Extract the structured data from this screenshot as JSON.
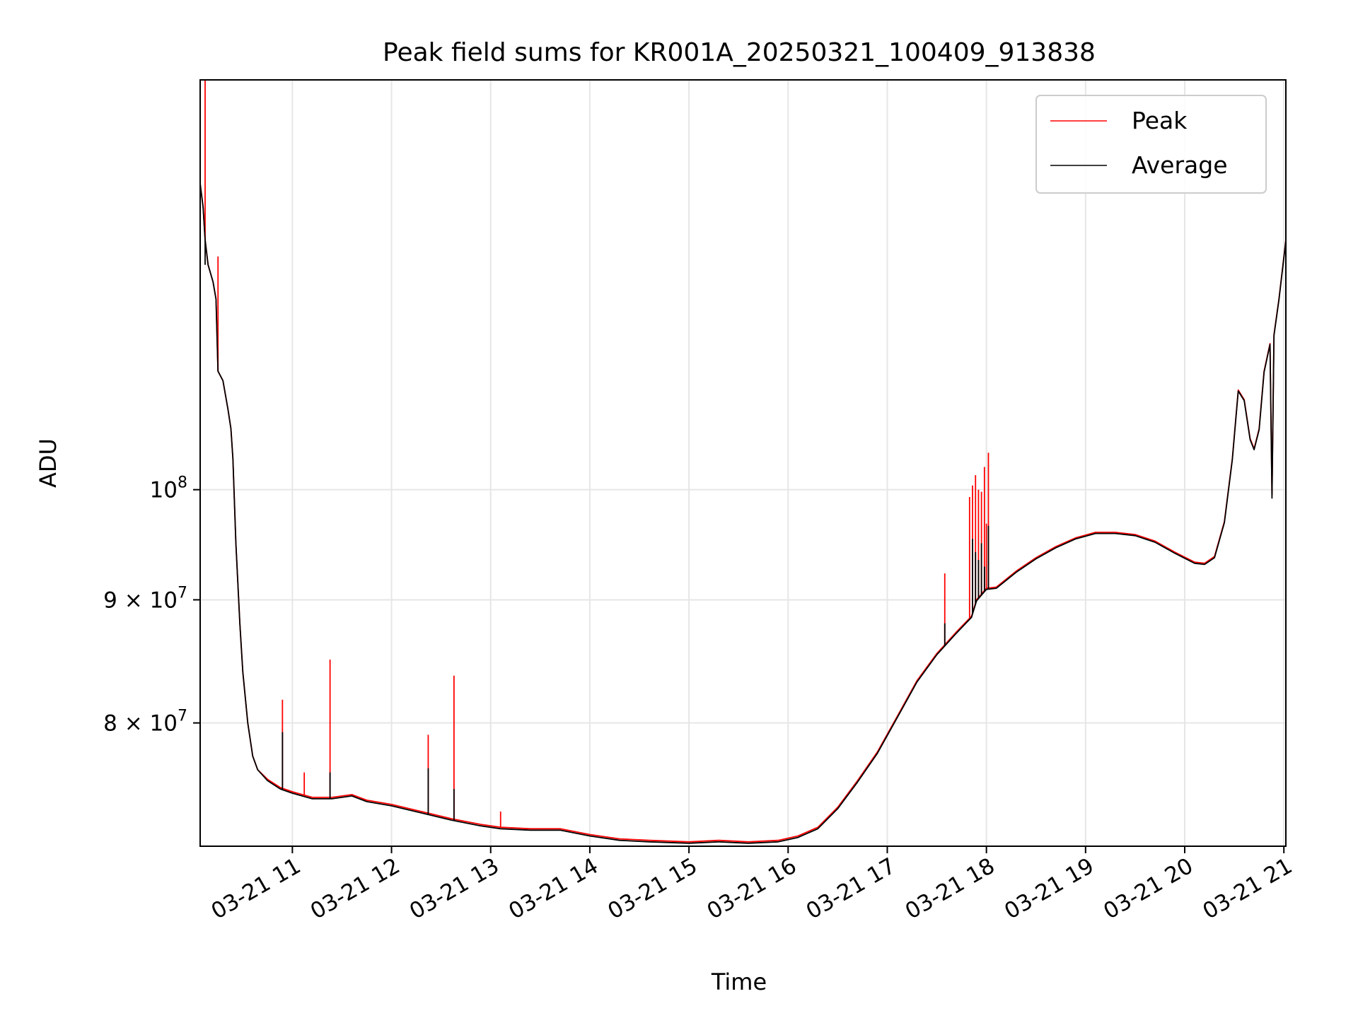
{
  "chart_data": {
    "type": "line",
    "title": "Peak field sums for KR001A_20250321_100409_913838",
    "xlabel": "Time",
    "ylabel": "ADU",
    "yscale": "log",
    "x_unit": "hours (2025-03-21)",
    "xlim": [
      10.07,
      21.02
    ],
    "ylim": [
      71100000,
      148000000
    ],
    "grid": true,
    "legend_position": "top-right",
    "x_ticks": [
      {
        "value": 11,
        "label": "03-21 11"
      },
      {
        "value": 12,
        "label": "03-21 12"
      },
      {
        "value": 13,
        "label": "03-21 13"
      },
      {
        "value": 14,
        "label": "03-21 14"
      },
      {
        "value": 15,
        "label": "03-21 15"
      },
      {
        "value": 16,
        "label": "03-21 16"
      },
      {
        "value": 17,
        "label": "03-21 17"
      },
      {
        "value": 18,
        "label": "03-21 18"
      },
      {
        "value": 19,
        "label": "03-21 19"
      },
      {
        "value": 20,
        "label": "03-21 20"
      },
      {
        "value": 21,
        "label": "03-21 21"
      }
    ],
    "y_ticks": [
      {
        "value": 80000000,
        "base": "8",
        "exp": "7",
        "times": true
      },
      {
        "value": 90000000,
        "base": "9",
        "exp": "7",
        "times": true
      },
      {
        "value": 100000000,
        "base": "10",
        "exp": "8",
        "times": false
      }
    ],
    "series": [
      {
        "name": "Peak",
        "color": "#ff0000",
        "points": [
          [
            10.07,
            134000000
          ],
          [
            10.1,
            131000000
          ],
          [
            10.12,
            127000000
          ],
          [
            10.15,
            124000000
          ],
          [
            10.2,
            122000000
          ],
          [
            10.23,
            120000000
          ],
          [
            10.25,
            112000000
          ],
          [
            10.3,
            111000000
          ],
          [
            10.35,
            108000000
          ],
          [
            10.38,
            106000000
          ],
          [
            10.4,
            103000000
          ],
          [
            10.43,
            95000000
          ],
          [
            10.47,
            88000000
          ],
          [
            10.5,
            84000000
          ],
          [
            10.55,
            80000000
          ],
          [
            10.6,
            77500000
          ],
          [
            10.65,
            76500000
          ],
          [
            10.75,
            75800000
          ],
          [
            10.88,
            75200000
          ],
          [
            11.0,
            74900000
          ],
          [
            11.2,
            74500000
          ],
          [
            11.4,
            74500000
          ],
          [
            11.6,
            74700000
          ],
          [
            11.75,
            74300000
          ],
          [
            12.0,
            74000000
          ],
          [
            12.3,
            73500000
          ],
          [
            12.6,
            73000000
          ],
          [
            12.9,
            72600000
          ],
          [
            13.1,
            72400000
          ],
          [
            13.4,
            72300000
          ],
          [
            13.7,
            72300000
          ],
          [
            14.0,
            71900000
          ],
          [
            14.3,
            71600000
          ],
          [
            14.6,
            71500000
          ],
          [
            15.0,
            71400000
          ],
          [
            15.3,
            71500000
          ],
          [
            15.6,
            71400000
          ],
          [
            15.9,
            71500000
          ],
          [
            16.1,
            71800000
          ],
          [
            16.3,
            72400000
          ],
          [
            16.5,
            73800000
          ],
          [
            16.7,
            75700000
          ],
          [
            16.9,
            77800000
          ],
          [
            17.1,
            80500000
          ],
          [
            17.3,
            83300000
          ],
          [
            17.5,
            85500000
          ],
          [
            17.7,
            87300000
          ],
          [
            17.85,
            88600000
          ],
          [
            17.9,
            90000000
          ],
          [
            18.0,
            91000000
          ],
          [
            18.1,
            91100000
          ],
          [
            18.3,
            92500000
          ],
          [
            18.5,
            93700000
          ],
          [
            18.7,
            94700000
          ],
          [
            18.9,
            95500000
          ],
          [
            19.1,
            96000000
          ],
          [
            19.3,
            96000000
          ],
          [
            19.5,
            95800000
          ],
          [
            19.7,
            95200000
          ],
          [
            19.9,
            94200000
          ],
          [
            20.1,
            93300000
          ],
          [
            20.2,
            93200000
          ],
          [
            20.3,
            93800000
          ],
          [
            20.4,
            97000000
          ],
          [
            20.48,
            103000000
          ],
          [
            20.54,
            110000000
          ],
          [
            20.6,
            109000000
          ],
          [
            20.66,
            105000000
          ],
          [
            20.7,
            104000000
          ],
          [
            20.75,
            106000000
          ],
          [
            20.8,
            112000000
          ],
          [
            20.86,
            115000000
          ],
          [
            20.88,
            99500000
          ],
          [
            20.9,
            116000000
          ],
          [
            20.95,
            120000000
          ],
          [
            21.02,
            127000000
          ]
        ],
        "spikes": [
          [
            10.12,
            148000000
          ],
          [
            10.25,
            125000000
          ],
          [
            10.9,
            81800000
          ],
          [
            11.12,
            76300000
          ],
          [
            11.38,
            85000000
          ],
          [
            12.37,
            79100000
          ],
          [
            12.63,
            83700000
          ],
          [
            13.1,
            73500000
          ],
          [
            17.58,
            92300000
          ],
          [
            17.83,
            99300000
          ],
          [
            17.86,
            100400000
          ],
          [
            17.89,
            101400000
          ],
          [
            17.92,
            100000000
          ],
          [
            17.95,
            99800000
          ],
          [
            17.98,
            102200000
          ],
          [
            18.0,
            96800000
          ],
          [
            18.02,
            103600000
          ]
        ]
      },
      {
        "name": "Average",
        "color": "#000000",
        "points": [
          [
            10.07,
            134000000
          ],
          [
            10.1,
            131000000
          ],
          [
            10.12,
            127000000
          ],
          [
            10.15,
            124000000
          ],
          [
            10.2,
            122000000
          ],
          [
            10.23,
            120000000
          ],
          [
            10.25,
            112000000
          ],
          [
            10.3,
            111000000
          ],
          [
            10.35,
            108000000
          ],
          [
            10.38,
            106000000
          ],
          [
            10.4,
            103000000
          ],
          [
            10.43,
            95000000
          ],
          [
            10.47,
            88000000
          ],
          [
            10.5,
            84000000
          ],
          [
            10.55,
            80000000
          ],
          [
            10.6,
            77500000
          ],
          [
            10.65,
            76500000
          ],
          [
            10.75,
            75700000
          ],
          [
            10.88,
            75100000
          ],
          [
            11.0,
            74800000
          ],
          [
            11.2,
            74400000
          ],
          [
            11.4,
            74400000
          ],
          [
            11.6,
            74600000
          ],
          [
            11.75,
            74200000
          ],
          [
            12.0,
            73900000
          ],
          [
            12.3,
            73400000
          ],
          [
            12.6,
            72900000
          ],
          [
            12.9,
            72500000
          ],
          [
            13.1,
            72300000
          ],
          [
            13.4,
            72200000
          ],
          [
            13.7,
            72200000
          ],
          [
            14.0,
            71800000
          ],
          [
            14.3,
            71500000
          ],
          [
            14.6,
            71400000
          ],
          [
            15.0,
            71300000
          ],
          [
            15.3,
            71400000
          ],
          [
            15.6,
            71300000
          ],
          [
            15.9,
            71400000
          ],
          [
            16.1,
            71700000
          ],
          [
            16.3,
            72300000
          ],
          [
            16.5,
            73700000
          ],
          [
            16.7,
            75600000
          ],
          [
            16.9,
            77700000
          ],
          [
            17.1,
            80400000
          ],
          [
            17.3,
            83200000
          ],
          [
            17.5,
            85400000
          ],
          [
            17.7,
            87200000
          ],
          [
            17.85,
            88500000
          ],
          [
            17.9,
            89900000
          ],
          [
            18.0,
            90900000
          ],
          [
            18.1,
            91000000
          ],
          [
            18.3,
            92400000
          ],
          [
            18.5,
            93600000
          ],
          [
            18.7,
            94600000
          ],
          [
            18.9,
            95400000
          ],
          [
            19.1,
            95900000
          ],
          [
            19.3,
            95900000
          ],
          [
            19.5,
            95700000
          ],
          [
            19.7,
            95100000
          ],
          [
            19.9,
            94100000
          ],
          [
            20.1,
            93200000
          ],
          [
            20.2,
            93100000
          ],
          [
            20.3,
            93700000
          ],
          [
            20.4,
            96900000
          ],
          [
            20.48,
            102900000
          ],
          [
            20.54,
            109900000
          ],
          [
            20.6,
            108900000
          ],
          [
            20.66,
            104900000
          ],
          [
            20.7,
            103900000
          ],
          [
            20.75,
            105900000
          ],
          [
            20.8,
            111900000
          ],
          [
            20.86,
            114900000
          ],
          [
            20.88,
            99200000
          ],
          [
            20.9,
            115900000
          ],
          [
            20.95,
            119900000
          ],
          [
            21.02,
            126900000
          ]
        ],
        "spikes": [
          [
            10.12,
            124000000
          ],
          [
            10.9,
            79300000
          ],
          [
            11.38,
            76300000
          ],
          [
            12.37,
            76600000
          ],
          [
            12.63,
            75100000
          ],
          [
            17.58,
            88000000
          ],
          [
            17.86,
            95400000
          ],
          [
            17.89,
            94200000
          ],
          [
            17.92,
            93500000
          ],
          [
            17.95,
            95000000
          ],
          [
            17.98,
            92900000
          ],
          [
            18.02,
            96600000
          ]
        ]
      }
    ]
  }
}
